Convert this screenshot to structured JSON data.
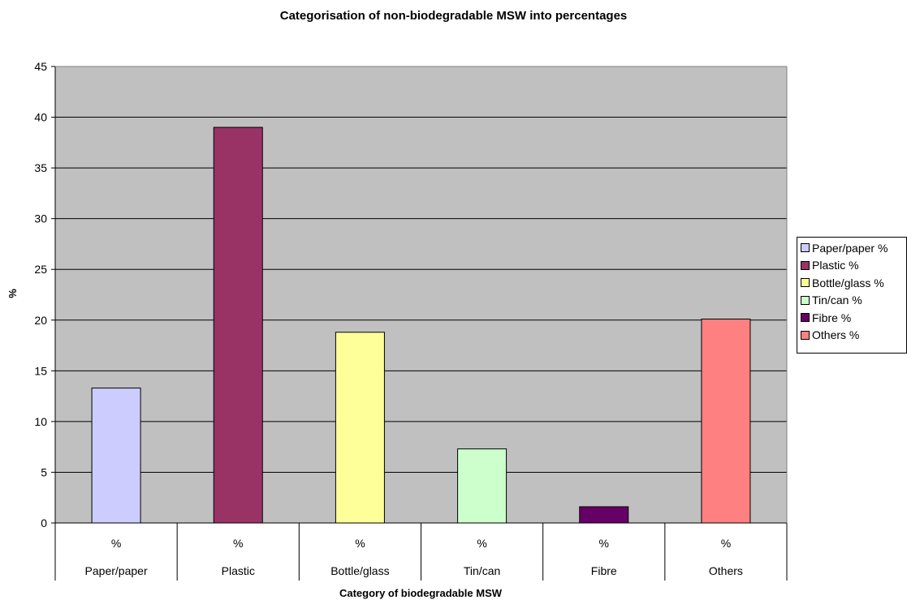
{
  "chart_data": {
    "type": "bar",
    "title": "Categorisation of non-biodegradable MSW into percentages",
    "xlabel": "Category of biodegradable MSW",
    "ylabel": "%",
    "ylim": [
      0,
      45
    ],
    "yticks": [
      0,
      5,
      10,
      15,
      20,
      25,
      30,
      35,
      40,
      45
    ],
    "grid": true,
    "legend_position": "right",
    "categories": [
      "Paper/paper",
      "Plastic",
      "Bottle/glass",
      "Tin/can",
      "Fibre",
      "Others"
    ],
    "category_unit_label": "%",
    "values": [
      13.3,
      39.0,
      18.8,
      7.3,
      1.6,
      20.1
    ],
    "series": [
      {
        "name": "Paper/paper %",
        "value": 13.3,
        "color": "#ccccff"
      },
      {
        "name": "Plastic %",
        "value": 39.0,
        "color": "#993366"
      },
      {
        "name": "Bottle/glass %",
        "value": 18.8,
        "color": "#ffff99"
      },
      {
        "name": "Tin/can %",
        "value": 7.3,
        "color": "#ccffcc"
      },
      {
        "name": "Fibre %",
        "value": 1.6,
        "color": "#660066"
      },
      {
        "name": "Others %",
        "value": 20.1,
        "color": "#ff8080"
      }
    ],
    "plot_background": "#c0c0c0"
  }
}
